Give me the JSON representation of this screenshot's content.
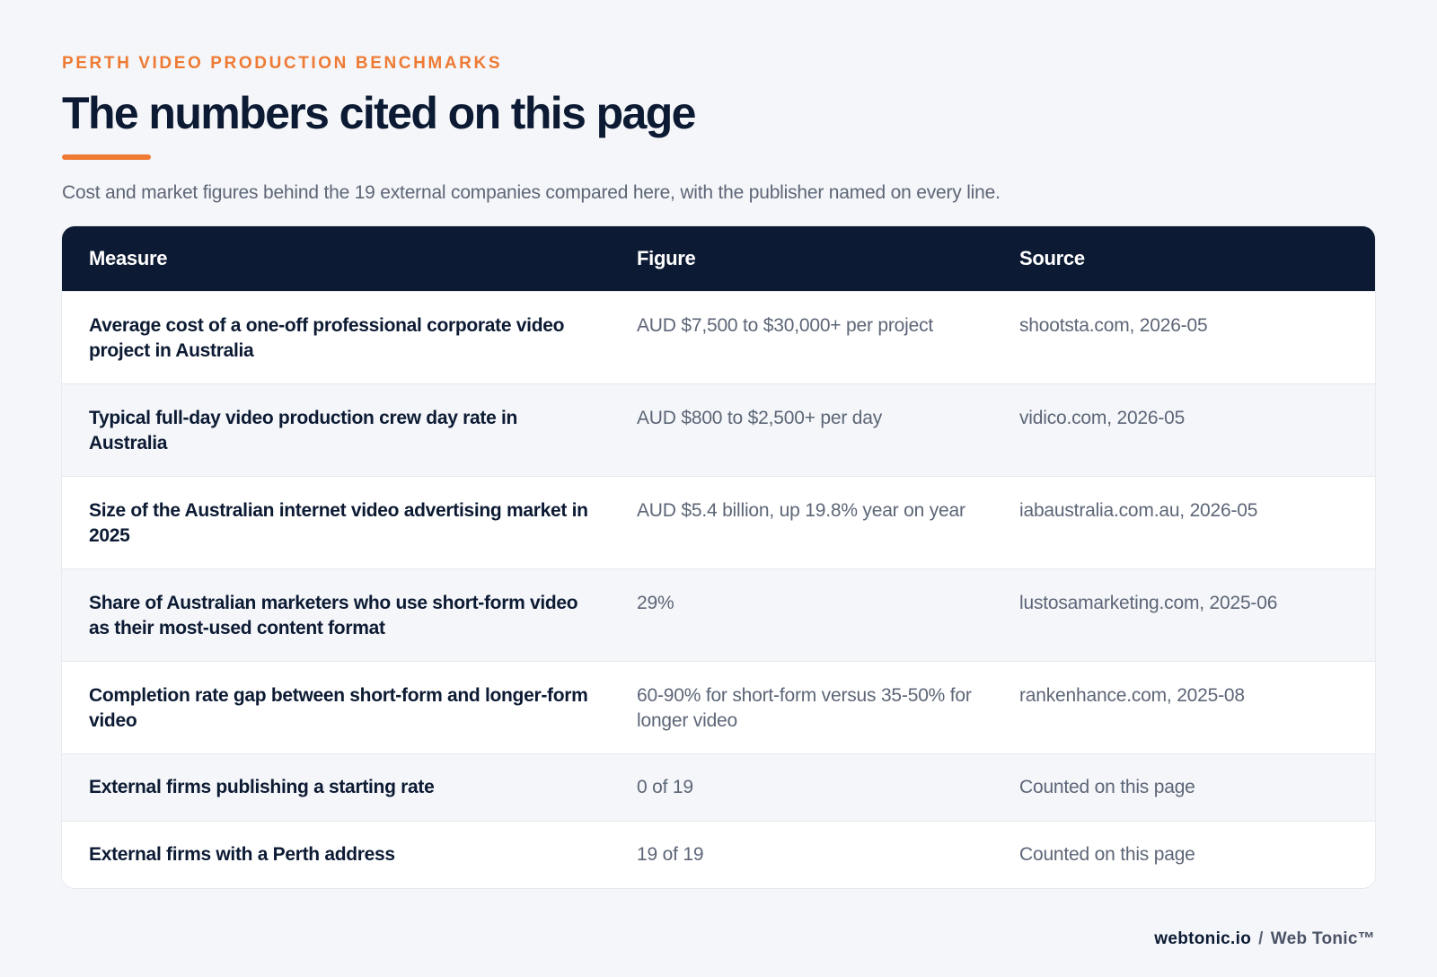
{
  "header": {
    "eyebrow": "PERTH VIDEO PRODUCTION BENCHMARKS",
    "title": "The numbers cited on this page",
    "subtitle": "Cost and market figures behind the 19 external companies compared here, with the publisher named on every line."
  },
  "table": {
    "columns": [
      "Measure",
      "Figure",
      "Source"
    ],
    "rows": [
      {
        "measure": "Average cost of a one-off professional corporate video project in Australia",
        "figure": "AUD $7,500 to $30,000+ per project",
        "source": "shootsta.com, 2026-05"
      },
      {
        "measure": "Typical full-day video production crew day rate in Australia",
        "figure": "AUD $800 to $2,500+ per day",
        "source": "vidico.com, 2026-05"
      },
      {
        "measure": "Size of the Australian internet video advertising market in 2025",
        "figure": "AUD $5.4 billion, up 19.8% year on year",
        "source": "iabaustralia.com.au, 2026-05"
      },
      {
        "measure": "Share of Australian marketers who use short-form video as their most-used content format",
        "figure": "29%",
        "source": "lustosamarketing.com, 2025-06"
      },
      {
        "measure": "Completion rate gap between short-form and longer-form video",
        "figure": "60-90% for short-form versus 35-50% for longer video",
        "source": "rankenhance.com, 2025-08"
      },
      {
        "measure": "External firms publishing a starting rate",
        "figure": "0 of 19",
        "source": "Counted on this page"
      },
      {
        "measure": "External firms with a Perth address",
        "figure": "19 of 19",
        "source": "Counted on this page"
      }
    ]
  },
  "footer": {
    "domain": "webtonic.io",
    "separator": "/",
    "brand": "Web Tonic™"
  }
}
